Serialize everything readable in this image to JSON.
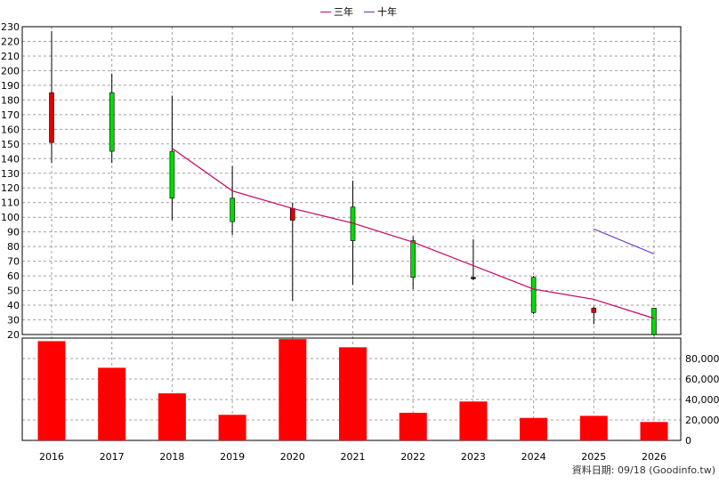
{
  "legend": {
    "three_year": "三年",
    "ten_year": "十年"
  },
  "source_note": "資料日期: 09/18  (Goodinfo.tw)",
  "colors": {
    "up_candle": "#00dd00",
    "down_candle": "#dd0000",
    "three_year_line": "#cc0066",
    "ten_year_line": "#6633cc",
    "volume_bar": "#ff0000"
  },
  "chart_data": [
    {
      "type": "candlestick",
      "categories": [
        "2016",
        "2017",
        "2018",
        "2019",
        "2020",
        "2021",
        "2022",
        "2023",
        "2024",
        "2025",
        "2026"
      ],
      "ylim": [
        20,
        230
      ],
      "y_ticks": [
        20,
        30,
        40,
        50,
        60,
        70,
        80,
        90,
        100,
        110,
        120,
        130,
        140,
        150,
        160,
        170,
        180,
        190,
        200,
        210,
        220,
        230
      ],
      "grid": true,
      "candles": [
        {
          "x": "2016",
          "open": 151,
          "close": 185,
          "high": 227,
          "low": 137,
          "color": "red"
        },
        {
          "x": "2017",
          "open": 185,
          "close": 145,
          "high": 198,
          "low": 137,
          "color": "green"
        },
        {
          "x": "2018",
          "open": 145,
          "close": 113,
          "high": 183,
          "low": 98,
          "color": "green"
        },
        {
          "x": "2019",
          "open": 113,
          "close": 97,
          "high": 135,
          "low": 88,
          "color": "green"
        },
        {
          "x": "2020",
          "open": 98,
          "close": 106,
          "high": 110,
          "low": 43,
          "color": "red"
        },
        {
          "x": "2021",
          "open": 107,
          "close": 84,
          "high": 125,
          "low": 54,
          "color": "green"
        },
        {
          "x": "2022",
          "open": 84,
          "close": 59,
          "high": 87,
          "low": 51,
          "color": "green"
        },
        {
          "x": "2023",
          "open": 59,
          "close": 59,
          "high": 85,
          "low": 57,
          "color": "black"
        },
        {
          "x": "2024",
          "open": 59,
          "close": 35,
          "high": 60,
          "low": 34,
          "color": "green"
        },
        {
          "x": "2025",
          "open": 35,
          "close": 38,
          "high": 39,
          "low": 27,
          "color": "red"
        },
        {
          "x": "2026",
          "open": 38,
          "close": 20,
          "high": 38,
          "low": 19,
          "color": "green"
        }
      ],
      "series": [
        {
          "name": "三年",
          "x": [
            "2018",
            "2019",
            "2020",
            "2021",
            "2022",
            "2023",
            "2024",
            "2025",
            "2026"
          ],
          "values": [
            147,
            118,
            106,
            96,
            83,
            67,
            51,
            44,
            31
          ]
        },
        {
          "name": "十年",
          "x": [
            "2025",
            "2026"
          ],
          "values": [
            92,
            75
          ]
        }
      ]
    },
    {
      "type": "bar",
      "categories": [
        "2016",
        "2017",
        "2018",
        "2019",
        "2020",
        "2021",
        "2022",
        "2023",
        "2024",
        "2025",
        "2026"
      ],
      "values": [
        97000,
        71000,
        46000,
        25000,
        99000,
        91000,
        27000,
        38000,
        22000,
        24000,
        18000
      ],
      "ylim": [
        0,
        100000
      ],
      "y_ticks": [
        "0",
        "20,000",
        "40,000",
        "60,000",
        "80,000"
      ],
      "y_tick_values": [
        0,
        20000,
        40000,
        60000,
        80000
      ],
      "grid": true
    }
  ]
}
